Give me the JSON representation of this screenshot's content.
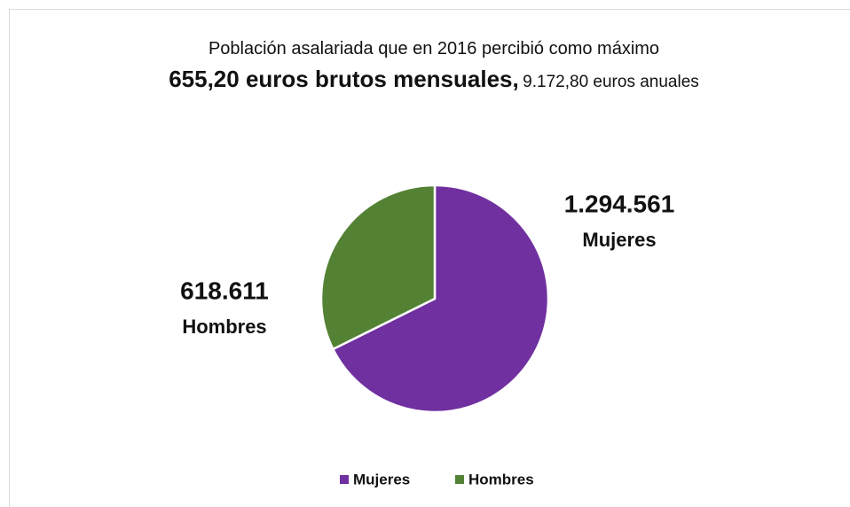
{
  "chart_data": {
    "type": "pie",
    "title": "Población asalariada que en 2016 percibió como máximo",
    "title_bold": "655,20 euros brutos mensuales,",
    "title_rest": "9.172,80 euros anuales",
    "categories": [
      "Mujeres",
      "Hombres"
    ],
    "values": [
      1294561,
      618611
    ],
    "value_labels": [
      "1.294.561",
      "618.611"
    ],
    "colors": [
      "#7030a0",
      "#548235"
    ],
    "legend": "bottom"
  }
}
